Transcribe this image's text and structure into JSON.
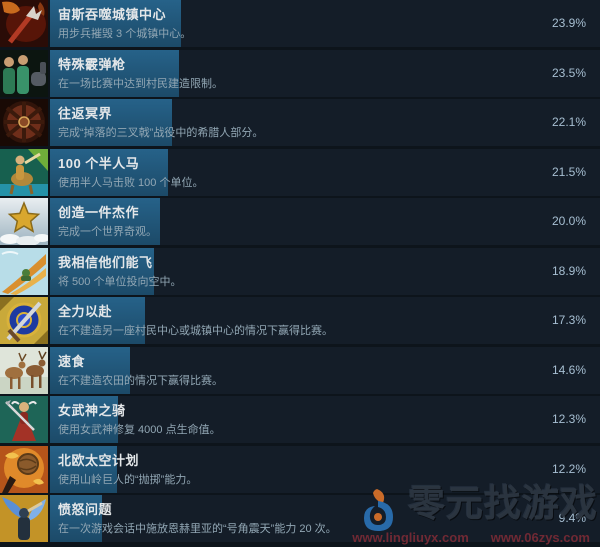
{
  "theme": {
    "page_bg": "#0d141b",
    "row_bg": "#141d28",
    "progress_fill": "#215d80",
    "title_color": "#e4e7e9",
    "desc_color": "#92a7b4",
    "percent_color": "#a7bfd2"
  },
  "rows": [
    {
      "title": "宙斯吞噬城镇中心",
      "desc": "用步兵摧毁 3 个城镇中心。",
      "percent": "23.9%",
      "pct": 23.9,
      "icon": "flaming-trident-icon"
    },
    {
      "title": "特殊霰弹枪",
      "desc": "在一场比赛中达到村民建造限制。",
      "percent": "23.5%",
      "pct": 23.5,
      "icon": "villagers-icon"
    },
    {
      "title": "往返冥界",
      "desc": "完成“掉落的三叉戟”战役中的希腊人部分。",
      "percent": "22.1%",
      "pct": 22.1,
      "icon": "underworld-gate-icon"
    },
    {
      "title": "100 个半人马",
      "desc": "使用半人马击败 100 个单位。",
      "percent": "21.5%",
      "pct": 21.5,
      "icon": "centaur-icon"
    },
    {
      "title": "创造一件杰作",
      "desc": "完成一个世界奇观。",
      "percent": "20.0%",
      "pct": 20.0,
      "icon": "gold-star-wonder-icon"
    },
    {
      "title": "我相信他们能飞",
      "desc": "将 500 个单位投向空中。",
      "percent": "18.9%",
      "pct": 18.9,
      "icon": "flying-units-icon"
    },
    {
      "title": "全力以赴",
      "desc": "在不建造另一座村民中心或城镇中心的情况下赢得比赛。",
      "percent": "17.3%",
      "pct": 17.3,
      "icon": "sword-shield-icon"
    },
    {
      "title": "速食",
      "desc": "在不建造农田的情况下赢得比赛。",
      "percent": "14.6%",
      "pct": 14.6,
      "icon": "deer-herd-icon"
    },
    {
      "title": "女武神之骑",
      "desc": "使用女武神修复 4000 点生命值。",
      "percent": "12.3%",
      "pct": 12.3,
      "icon": "valkyrie-icon"
    },
    {
      "title": "北欧太空计划",
      "desc": "使用山岭巨人的“抛掷”能力。",
      "percent": "12.2%",
      "pct": 12.2,
      "icon": "boulder-punt-icon"
    },
    {
      "title": "愤怒问题",
      "desc": "在一次游戏会话中施放恩赫里亚的“号角震天”能力 20 次。",
      "percent": "9.4%",
      "pct": 9.4,
      "icon": "horn-blast-icon"
    }
  ],
  "watermark": {
    "brand": "零元找游戏",
    "url_left": "www.lingliuyx.com",
    "url_right": "www.06zys.com"
  }
}
